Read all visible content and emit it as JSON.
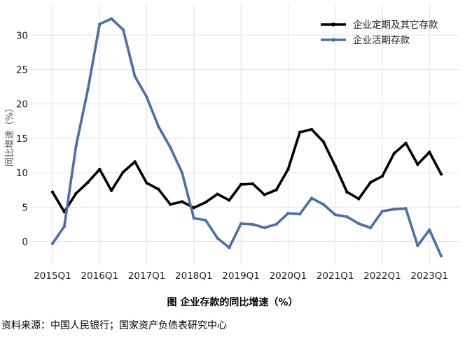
{
  "chart_data": {
    "type": "line",
    "ylabel": "同比增速（%）",
    "ylim": [
      -3.5,
      34.5
    ],
    "yticks": [
      0,
      5,
      10,
      15,
      20,
      25,
      30
    ],
    "grid": true,
    "legend_position": "top-right",
    "x_labels": [
      "2015Q1",
      "2016Q1",
      "2017Q1",
      "2018Q1",
      "2019Q1",
      "2020Q1",
      "2021Q1",
      "2022Q1",
      "2023Q1"
    ],
    "x": [
      "2015Q1",
      "2015Q2",
      "2015Q3",
      "2015Q4",
      "2016Q1",
      "2016Q2",
      "2016Q3",
      "2016Q4",
      "2017Q1",
      "2017Q2",
      "2017Q3",
      "2017Q4",
      "2018Q1",
      "2018Q2",
      "2018Q3",
      "2018Q4",
      "2019Q1",
      "2019Q2",
      "2019Q3",
      "2019Q4",
      "2020Q1",
      "2020Q2",
      "2020Q3",
      "2020Q4",
      "2021Q1",
      "2021Q2",
      "2021Q3",
      "2021Q4",
      "2022Q1",
      "2022Q2",
      "2022Q3",
      "2022Q4",
      "2023Q1",
      "2023Q2"
    ],
    "series": [
      {
        "name": "企业定期及其它存款",
        "color": "#000000",
        "values": [
          7.2,
          4.3,
          7.0,
          8.6,
          10.5,
          7.4,
          10.1,
          11.6,
          8.5,
          7.6,
          5.4,
          5.8,
          4.9,
          5.7,
          6.9,
          6.0,
          8.3,
          8.4,
          6.8,
          7.5,
          10.5,
          15.9,
          16.3,
          14.5,
          11.0,
          7.2,
          6.2,
          8.6,
          9.5,
          12.8,
          14.3,
          11.2,
          13.0,
          9.8
        ]
      },
      {
        "name": "企业活期存款",
        "color": "#4a6faf",
        "values": [
          -0.3,
          2.2,
          13.9,
          22.1,
          31.6,
          32.4,
          30.8,
          24.0,
          21.0,
          16.7,
          13.7,
          10.0,
          3.4,
          3.1,
          0.5,
          -0.9,
          2.6,
          2.5,
          2.0,
          2.5,
          4.1,
          4.0,
          6.3,
          5.4,
          3.9,
          3.6,
          2.6,
          2.0,
          4.4,
          4.7,
          4.8,
          -0.6,
          1.7,
          -2.1
        ]
      }
    ]
  },
  "caption": "图  企业存款的同比增速（%）",
  "source": "资料来源：中国人民银行；国家资产负债表研究中心"
}
